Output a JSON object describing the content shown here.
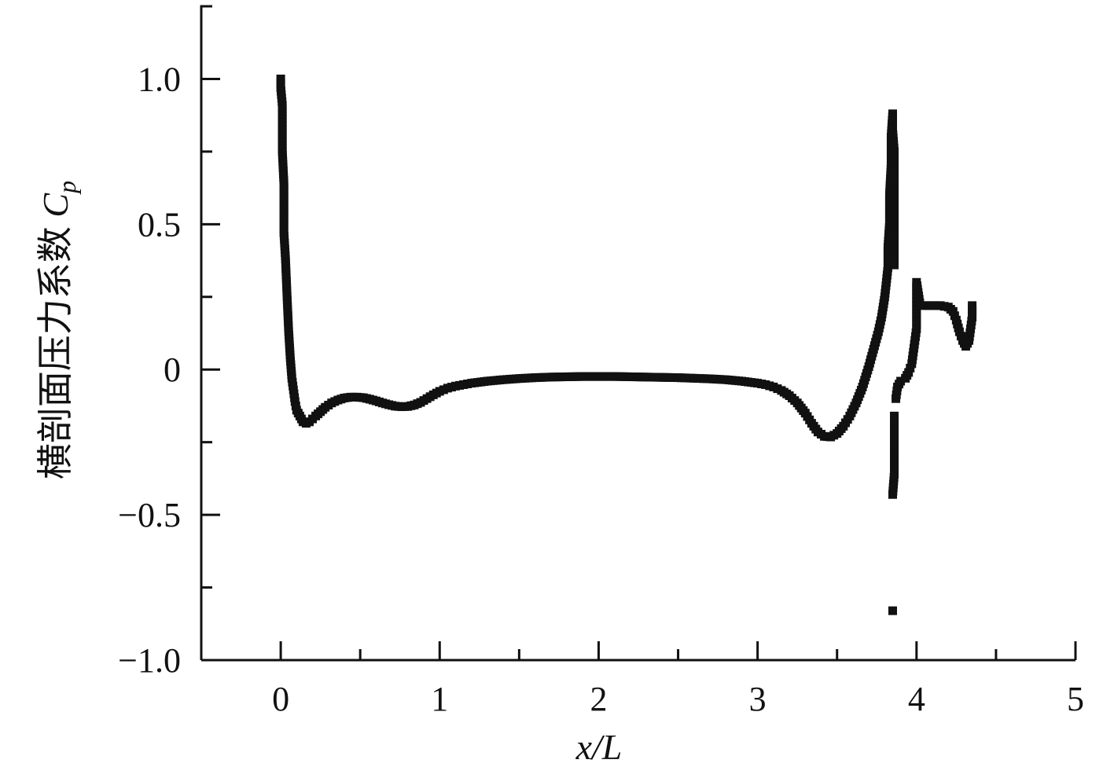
{
  "chart_data": {
    "type": "scatter",
    "title": "",
    "xlabel": "x/L",
    "ylabel_text": "横剖面压力系数 ",
    "ylabel_symbol": "C",
    "ylabel_subscript": "p",
    "xlim": [
      -0.5,
      5
    ],
    "ylim": [
      -1.0,
      1.25
    ],
    "x_ticks_major": [
      0,
      1,
      2,
      3,
      4,
      5
    ],
    "x_tick_labels": [
      "0",
      "1",
      "2",
      "3",
      "4",
      "5"
    ],
    "x_ticks_minor": [
      -0.5,
      0.5,
      1.5,
      2.5,
      3.5,
      4.5
    ],
    "y_ticks_major": [
      -1.0,
      -0.5,
      0,
      0.5,
      1.0
    ],
    "y_tick_labels": [
      "−1.0",
      "−0.5",
      "0",
      "0.5",
      "1.0"
    ],
    "y_ticks_minor": [
      -0.75,
      -0.25,
      0.25,
      0.75
    ],
    "grid": false,
    "marker": "square",
    "marker_color": "#111111",
    "series": [
      {
        "points": [
          [
            0.0,
            1.0
          ],
          [
            0.0,
            0.97
          ],
          [
            0.01,
            0.91
          ],
          [
            0.01,
            0.85
          ],
          [
            0.01,
            0.75
          ],
          [
            0.02,
            0.64
          ],
          [
            0.02,
            0.53
          ],
          [
            0.02,
            0.47
          ],
          [
            0.03,
            0.38
          ],
          [
            0.04,
            0.25
          ],
          [
            0.05,
            0.13
          ],
          [
            0.06,
            0.04
          ],
          [
            0.07,
            -0.03
          ],
          [
            0.08,
            -0.07
          ],
          [
            0.09,
            -0.11
          ],
          [
            0.1,
            -0.14
          ],
          [
            0.12,
            -0.16
          ],
          [
            0.14,
            -0.18
          ],
          [
            0.16,
            -0.185
          ],
          [
            0.18,
            -0.18
          ],
          [
            0.2,
            -0.17
          ],
          [
            0.22,
            -0.16
          ],
          [
            0.25,
            -0.145
          ],
          [
            0.28,
            -0.13
          ],
          [
            0.32,
            -0.115
          ],
          [
            0.36,
            -0.105
          ],
          [
            0.4,
            -0.098
          ],
          [
            0.44,
            -0.095
          ],
          [
            0.48,
            -0.095
          ],
          [
            0.52,
            -0.097
          ],
          [
            0.56,
            -0.102
          ],
          [
            0.6,
            -0.108
          ],
          [
            0.64,
            -0.115
          ],
          [
            0.68,
            -0.121
          ],
          [
            0.72,
            -0.126
          ],
          [
            0.76,
            -0.128
          ],
          [
            0.8,
            -0.127
          ],
          [
            0.84,
            -0.122
          ],
          [
            0.88,
            -0.113
          ],
          [
            0.92,
            -0.1
          ],
          [
            0.96,
            -0.087
          ],
          [
            1.0,
            -0.075
          ],
          [
            1.05,
            -0.064
          ],
          [
            1.1,
            -0.057
          ],
          [
            1.15,
            -0.052
          ],
          [
            1.2,
            -0.047
          ],
          [
            1.3,
            -0.04
          ],
          [
            1.4,
            -0.035
          ],
          [
            1.5,
            -0.031
          ],
          [
            1.6,
            -0.028
          ],
          [
            1.7,
            -0.026
          ],
          [
            1.8,
            -0.025
          ],
          [
            1.9,
            -0.024
          ],
          [
            2.0,
            -0.024
          ],
          [
            2.1,
            -0.024
          ],
          [
            2.2,
            -0.025
          ],
          [
            2.3,
            -0.026
          ],
          [
            2.4,
            -0.027
          ],
          [
            2.5,
            -0.028
          ],
          [
            2.6,
            -0.03
          ],
          [
            2.7,
            -0.032
          ],
          [
            2.8,
            -0.035
          ],
          [
            2.9,
            -0.04
          ],
          [
            3.0,
            -0.047
          ],
          [
            3.05,
            -0.052
          ],
          [
            3.1,
            -0.06
          ],
          [
            3.15,
            -0.072
          ],
          [
            3.2,
            -0.09
          ],
          [
            3.25,
            -0.115
          ],
          [
            3.3,
            -0.15
          ],
          [
            3.34,
            -0.185
          ],
          [
            3.38,
            -0.215
          ],
          [
            3.42,
            -0.23
          ],
          [
            3.46,
            -0.232
          ],
          [
            3.5,
            -0.22
          ],
          [
            3.54,
            -0.195
          ],
          [
            3.58,
            -0.16
          ],
          [
            3.62,
            -0.115
          ],
          [
            3.66,
            -0.06
          ],
          [
            3.7,
            0.01
          ],
          [
            3.73,
            0.07
          ],
          [
            3.76,
            0.13
          ],
          [
            3.78,
            0.18
          ],
          [
            3.8,
            0.25
          ],
          [
            3.81,
            0.3
          ],
          [
            3.82,
            0.35
          ],
          [
            3.82,
            0.42
          ],
          [
            3.83,
            0.5
          ],
          [
            3.83,
            0.6
          ],
          [
            3.84,
            0.7
          ],
          [
            3.84,
            0.8
          ],
          [
            3.85,
            0.88
          ],
          [
            3.85,
            0.82
          ],
          [
            3.86,
            0.75
          ],
          [
            3.86,
            0.68
          ],
          [
            3.86,
            0.6
          ],
          [
            3.86,
            0.5
          ],
          [
            3.86,
            0.42
          ],
          [
            3.86,
            0.36
          ],
          [
            3.86,
            -0.16
          ],
          [
            3.86,
            -0.2
          ],
          [
            3.86,
            -0.25
          ],
          [
            3.86,
            -0.3
          ],
          [
            3.86,
            -0.36
          ],
          [
            3.85,
            -0.43
          ],
          [
            3.85,
            -0.83
          ],
          [
            3.87,
            -0.1
          ],
          [
            3.88,
            -0.06
          ],
          [
            3.9,
            -0.04
          ],
          [
            3.93,
            -0.03
          ],
          [
            3.95,
            -0.01
          ],
          [
            3.97,
            0.02
          ],
          [
            3.98,
            0.06
          ],
          [
            3.99,
            0.1
          ],
          [
            4.0,
            0.14
          ],
          [
            4.0,
            0.18
          ],
          [
            4.0,
            0.22
          ],
          [
            4.0,
            0.26
          ],
          [
            4.0,
            0.3
          ],
          [
            4.02,
            0.23
          ],
          [
            4.05,
            0.22
          ],
          [
            4.1,
            0.22
          ],
          [
            4.15,
            0.22
          ],
          [
            4.2,
            0.215
          ],
          [
            4.23,
            0.2
          ],
          [
            4.25,
            0.17
          ],
          [
            4.27,
            0.13
          ],
          [
            4.29,
            0.1
          ],
          [
            4.31,
            0.08
          ],
          [
            4.33,
            0.1
          ],
          [
            4.34,
            0.14
          ],
          [
            4.35,
            0.18
          ],
          [
            4.35,
            0.22
          ]
        ]
      }
    ]
  }
}
